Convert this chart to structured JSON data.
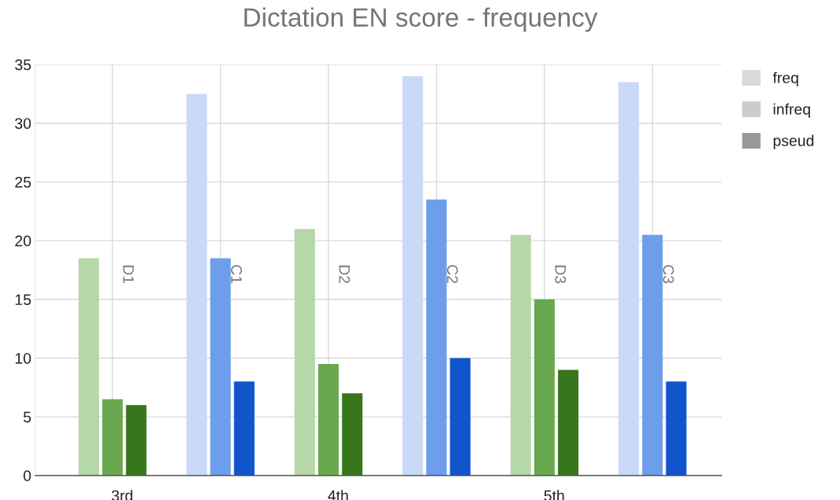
{
  "chart_data": {
    "type": "bar",
    "title": "Dictation EN score - frequency",
    "categories": [
      "D1",
      "C1",
      "D2",
      "C2",
      "D3",
      "C3"
    ],
    "series": [
      {
        "name": "freq",
        "color": "#d9d9d9",
        "colors": [
          "#b6d7a8",
          "#c9daf8",
          "#b6d7a8",
          "#c9daf8",
          "#b6d7a8",
          "#c9daf8"
        ],
        "values": [
          18.5,
          32.5,
          21,
          34,
          20.5,
          33.5
        ]
      },
      {
        "name": "infreq",
        "color": "#cccccc",
        "colors": [
          "#6aa84f",
          "#6d9eeb",
          "#6aa84f",
          "#6d9eeb",
          "#6aa84f",
          "#6d9eeb"
        ],
        "values": [
          6.5,
          18.5,
          9.5,
          23.5,
          15,
          20.5
        ]
      },
      {
        "name": "pseud",
        "color": "#999999",
        "colors": [
          "#38761d",
          "#1155cc",
          "#38761d",
          "#1155cc",
          "#38761d",
          "#1155cc"
        ],
        "values": [
          6,
          8,
          7,
          10,
          9,
          8
        ]
      }
    ],
    "annotations": [
      "3rd",
      "4th",
      "5th"
    ],
    "ylim": [
      0,
      35
    ],
    "yticks": [
      0,
      5,
      10,
      15,
      20,
      25,
      30,
      35
    ],
    "grid": true,
    "legend": "top right"
  }
}
